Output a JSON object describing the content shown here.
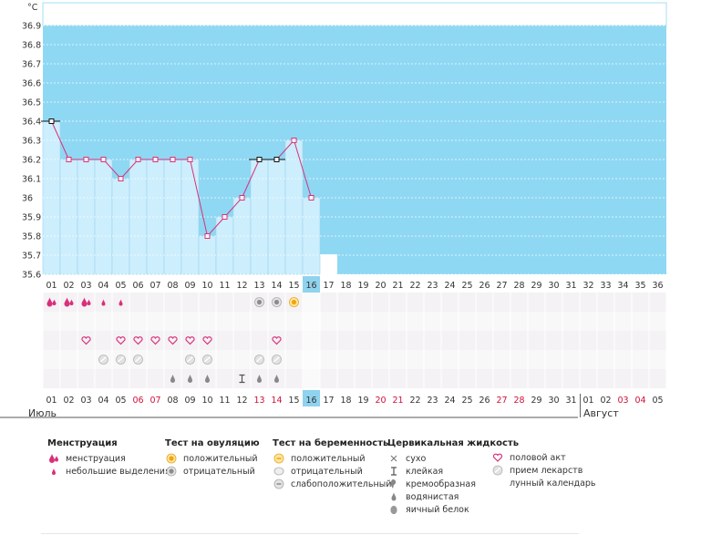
{
  "chart_data": {
    "type": "line",
    "unit_label": "°C",
    "y_ticks": [
      "36.9",
      "36.8",
      "36.7",
      "36.6",
      "36.5",
      "36.4",
      "36.3",
      "36.2",
      "36.1",
      "36",
      "35.9",
      "35.8",
      "35.7",
      "35.6"
    ],
    "ylim": [
      35.6,
      36.9
    ],
    "day_labels": [
      "01",
      "02",
      "03",
      "04",
      "05",
      "06",
      "07",
      "08",
      "09",
      "10",
      "11",
      "12",
      "13",
      "14",
      "15",
      "16",
      "17",
      "18",
      "19",
      "20",
      "21",
      "22",
      "23",
      "24",
      "25",
      "26",
      "27",
      "28",
      "29",
      "30",
      "31",
      "32",
      "33",
      "34",
      "35",
      "36"
    ],
    "current_day_index": 15,
    "temperatures": [
      36.4,
      36.2,
      36.2,
      36.2,
      36.1,
      36.2,
      36.2,
      36.2,
      36.2,
      35.8,
      35.9,
      36.0,
      36.2,
      36.2,
      36.3,
      36.0
    ],
    "marker_styles": [
      "black",
      "pink",
      "pink",
      "pink",
      "pink",
      "pink",
      "pink",
      "pink",
      "pink",
      "pink",
      "pink",
      "pink",
      "black",
      "black",
      "pink",
      "pink"
    ],
    "coverline_segments": [
      [
        0,
        0
      ],
      [
        12,
        13
      ]
    ],
    "date_labels": [
      "01",
      "02",
      "03",
      "04",
      "05",
      "06",
      "07",
      "08",
      "09",
      "10",
      "11",
      "12",
      "13",
      "14",
      "15",
      "16",
      "17",
      "18",
      "19",
      "20",
      "21",
      "22",
      "23",
      "24",
      "25",
      "26",
      "27",
      "28",
      "29",
      "30",
      "31",
      "01",
      "02",
      "03",
      "04",
      "05"
    ],
    "weekend_indices": [
      5,
      6,
      12,
      13,
      19,
      20,
      26,
      27,
      33,
      34
    ],
    "months": [
      {
        "label": "Июль"
      },
      {
        "label": "Август"
      }
    ],
    "colors": {
      "sky": "#8fd8f3",
      "bars": "#cdeefd",
      "line": "#d8307a",
      "today": "#8fd3ee",
      "weekend": "#d0103a"
    },
    "symbol_rows": {
      "menstruation_heavy": [
        0,
        1,
        2
      ],
      "menstruation_light": [
        3,
        4
      ],
      "ovulation_negative": [
        12,
        13
      ],
      "ovulation_positive": [
        14
      ],
      "intercourse": [
        2,
        4,
        5,
        6,
        7,
        8,
        9,
        13
      ],
      "medication": [
        3,
        4,
        5,
        8,
        9,
        12,
        13
      ],
      "sticky": [
        11
      ],
      "watery": [
        7,
        8,
        9,
        12,
        13
      ]
    },
    "moon_day_index": 16
  },
  "legend": {
    "menstruation": {
      "title": "Менструация",
      "items": [
        {
          "icon": "menstruation-icon",
          "label": "менструация"
        },
        {
          "icon": "spotting-icon",
          "label": "небольшие выделения"
        }
      ]
    },
    "ovulation": {
      "title": "Тест на овуляцию",
      "items": [
        {
          "icon": "positive-test-icon",
          "label": "положительный"
        },
        {
          "icon": "negative-test-icon",
          "label": "отрицательный"
        }
      ]
    },
    "pregnancy": {
      "title": "Тест на беременность",
      "items": [
        {
          "icon": "pregnancy-positive-icon",
          "label": "положительный"
        },
        {
          "icon": "pregnancy-negative-icon",
          "label": "отрицательный"
        },
        {
          "icon": "pregnancy-weak-icon",
          "label": "слабоположительный"
        }
      ]
    },
    "cervical": {
      "title": "Цервикальная жидкость",
      "items": [
        {
          "icon": "dry-icon",
          "label": "сухо"
        },
        {
          "icon": "sticky-icon",
          "label": "клейкая"
        },
        {
          "icon": "creamy-icon",
          "label": "кремообразная"
        },
        {
          "icon": "watery-icon",
          "label": "водянистая"
        },
        {
          "icon": "egg-white-icon",
          "label": "яичный белок"
        }
      ]
    },
    "other": {
      "items": [
        {
          "icon": "heart-icon",
          "label": "половой акт"
        },
        {
          "icon": "pill-icon",
          "label": "прием лекарств"
        },
        {
          "icon": "moon-icon",
          "label": "лунный календарь"
        }
      ]
    }
  }
}
